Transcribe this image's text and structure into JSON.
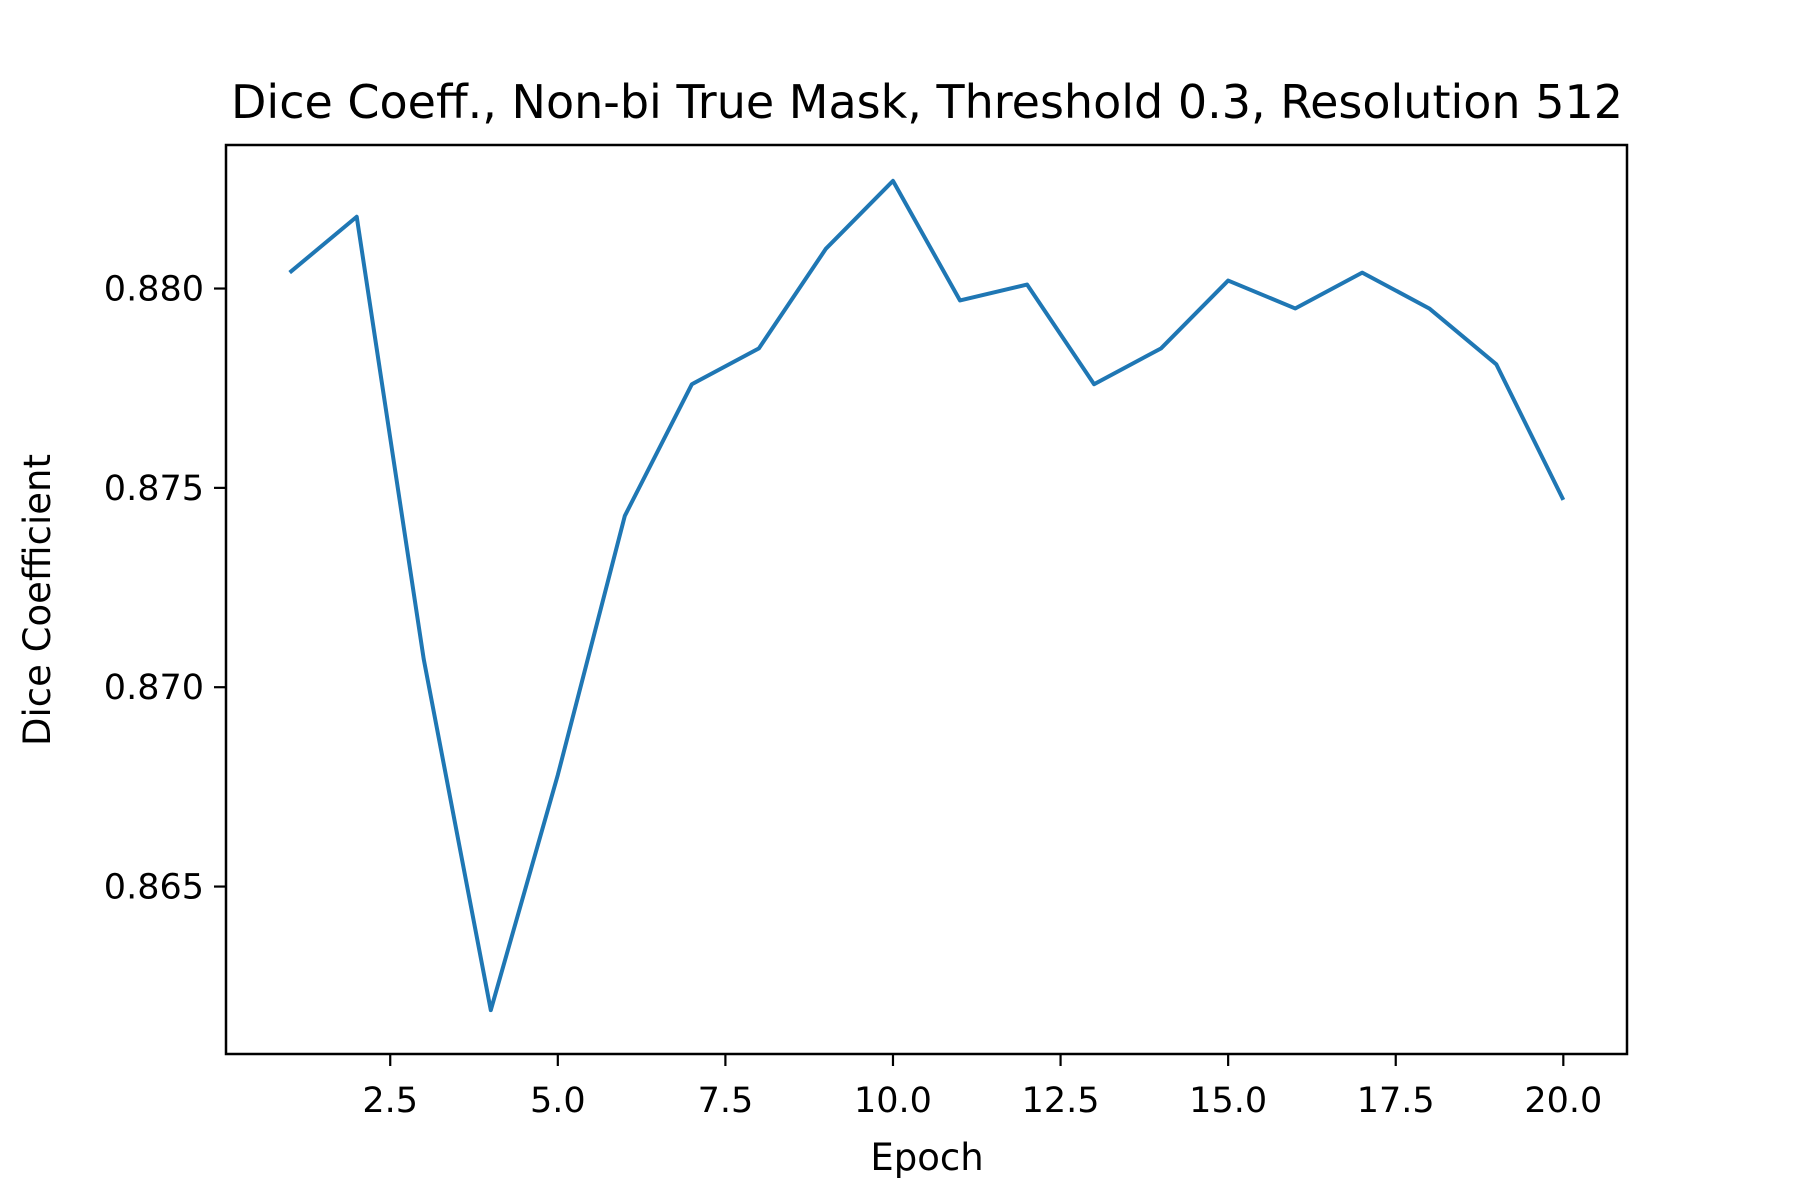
{
  "chart_data": {
    "type": "line",
    "title": "Dice Coeff., Non-bi True Mask, Threshold 0.3, Resolution 512",
    "xlabel": "Epoch",
    "ylabel": "Dice Coefficient",
    "xlim": [
      0.05,
      20.95
    ],
    "ylim": [
      0.8608,
      0.8836
    ],
    "xticks": [
      2.5,
      5.0,
      7.5,
      10.0,
      12.5,
      15.0,
      17.5,
      20.0
    ],
    "xtick_labels": [
      "2.5",
      "5.0",
      "7.5",
      "10.0",
      "12.5",
      "15.0",
      "17.5",
      "20.0"
    ],
    "yticks": [
      0.865,
      0.87,
      0.875,
      0.88
    ],
    "ytick_labels": [
      "0.865",
      "0.870",
      "0.875",
      "0.880"
    ],
    "grid": false,
    "series": [
      {
        "color": "#1f77b4",
        "x": [
          1,
          2,
          3,
          4,
          5,
          6,
          7,
          8,
          9,
          10,
          11,
          12,
          13,
          14,
          15,
          16,
          17,
          18,
          19,
          20
        ],
        "y": [
          0.8804,
          0.8818,
          0.8707,
          0.8619,
          0.8678,
          0.8743,
          0.8776,
          0.8785,
          0.881,
          0.8827,
          0.8797,
          0.8801,
          0.8776,
          0.8785,
          0.8802,
          0.8795,
          0.8804,
          0.8795,
          0.8781,
          0.8747
        ]
      }
    ]
  }
}
